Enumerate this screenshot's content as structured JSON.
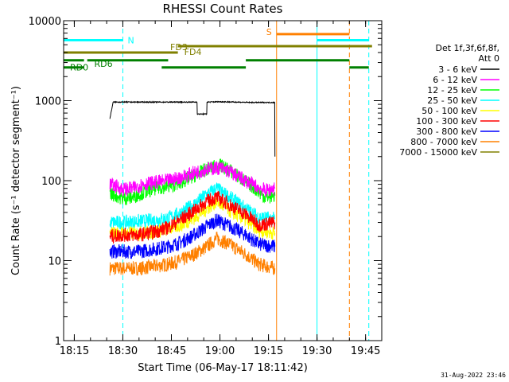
{
  "chart_data": {
    "type": "line",
    "title": "RHESSI Count Rates",
    "xlabel": "Start Time (06-May-17 18:11:42)",
    "ylabel": "Count Rate (s⁻¹ detector segment⁻¹)",
    "yscale": "log",
    "ylim": [
      1,
      10000
    ],
    "xlim": [
      "18:11:42",
      "19:50:00"
    ],
    "x_ticks": [
      "18:15",
      "18:30",
      "18:45",
      "19:00",
      "19:15",
      "19:30",
      "19:45"
    ],
    "y_ticks": [
      "1",
      "10",
      "100",
      "1000",
      "10000"
    ],
    "legend": {
      "placement": "right",
      "header": [
        "Det 1f,3f,6f,8f,",
        "Att 0"
      ]
    },
    "series": [
      {
        "name": "3 - 6 keV",
        "color": "#000000",
        "x": [
          "18:26",
          "18:27",
          "18:30",
          "18:35",
          "18:40",
          "18:44",
          "18:50",
          "18:53",
          "18:53",
          "18:56",
          "18:56",
          "19:00",
          "19:05",
          "19:10",
          "19:15",
          "19:17",
          "19:17"
        ],
        "y": [
          600,
          960,
          960,
          960,
          960,
          960,
          960,
          960,
          680,
          680,
          960,
          970,
          960,
          950,
          950,
          950,
          200
        ]
      },
      {
        "name": "6 - 12 keV",
        "color": "#ff00ff",
        "x": [
          "18:26",
          "18:28",
          "18:30",
          "18:33",
          "18:36",
          "18:40",
          "18:44",
          "18:48",
          "18:52",
          "18:56",
          "19:00",
          "19:03",
          "19:06",
          "19:10",
          "19:14",
          "19:17"
        ],
        "y": [
          90,
          85,
          78,
          80,
          90,
          95,
          100,
          110,
          125,
          140,
          145,
          130,
          110,
          90,
          75,
          80
        ]
      },
      {
        "name": "12 - 25 keV",
        "color": "#00ff00",
        "x": [
          "18:26",
          "18:28",
          "18:30",
          "18:33",
          "18:36",
          "18:40",
          "18:44",
          "18:48",
          "18:52",
          "18:56",
          "19:00",
          "19:03",
          "19:06",
          "19:10",
          "19:14",
          "19:17"
        ],
        "y": [
          70,
          65,
          60,
          62,
          70,
          80,
          85,
          95,
          115,
          140,
          155,
          135,
          110,
          85,
          62,
          65
        ]
      },
      {
        "name": "25 - 50 keV",
        "color": "#00ffff",
        "x": [
          "18:26",
          "18:30",
          "18:35",
          "18:40",
          "18:44",
          "18:48",
          "18:52",
          "18:56",
          "18:59",
          "19:03",
          "19:08",
          "19:12",
          "19:17"
        ],
        "y": [
          30,
          30,
          31,
          32,
          34,
          40,
          50,
          68,
          80,
          62,
          45,
          35,
          33
        ]
      },
      {
        "name": "50 - 100 keV",
        "color": "#ffff00",
        "x": [
          "18:26",
          "18:30",
          "18:35",
          "18:40",
          "18:44",
          "18:48",
          "18:52",
          "18:56",
          "18:59",
          "19:03",
          "19:08",
          "19:12",
          "19:17"
        ],
        "y": [
          22,
          22,
          22,
          23,
          25,
          28,
          34,
          45,
          55,
          42,
          32,
          24,
          22
        ]
      },
      {
        "name": "100 - 300 keV",
        "color": "#ff0000",
        "x": [
          "18:26",
          "18:30",
          "18:35",
          "18:40",
          "18:44",
          "18:48",
          "18:52",
          "18:56",
          "18:59",
          "19:03",
          "19:08",
          "19:12",
          "19:17"
        ],
        "y": [
          20,
          21,
          21,
          23,
          26,
          33,
          42,
          55,
          62,
          50,
          38,
          28,
          30
        ]
      },
      {
        "name": "300 - 800 keV",
        "color": "#0000ff",
        "x": [
          "18:26",
          "18:30",
          "18:35",
          "18:40",
          "18:44",
          "18:48",
          "18:52",
          "18:56",
          "18:59",
          "19:03",
          "19:08",
          "19:12",
          "19:17"
        ],
        "y": [
          13,
          13,
          13,
          14,
          15,
          17,
          21,
          27,
          32,
          27,
          21,
          16,
          15
        ]
      },
      {
        "name": "800 - 7000 keV",
        "color": "#ff8000",
        "x": [
          "18:26",
          "18:30",
          "18:35",
          "18:40",
          "18:44",
          "18:48",
          "18:52",
          "18:56",
          "18:59",
          "19:03",
          "19:08",
          "19:12",
          "19:17"
        ],
        "y": [
          8,
          8,
          8,
          8.5,
          9,
          10,
          12,
          15,
          19,
          16,
          12,
          9,
          8
        ]
      },
      {
        "name": "7000 - 15000 keV",
        "color": "#808000",
        "x": [],
        "y": []
      }
    ],
    "annotations": {
      "top_bars": [
        {
          "label": "N",
          "color": "#00ffff",
          "start": "18:11:42",
          "end": "18:30:00",
          "level": 5700
        },
        {
          "label": "",
          "color": "#00ffff",
          "start": "19:30:00",
          "end": "19:46:00",
          "level": 5700
        },
        {
          "label": "S",
          "color": "#ff8000",
          "start": "19:17:30",
          "end": "19:40:00",
          "level": 6800
        },
        {
          "label": "FD3",
          "color": "#808000",
          "start": "18:11:42",
          "end": "18:47:00",
          "level": 4000
        },
        {
          "label": "FD4",
          "color": "#808000",
          "start": "18:47:00",
          "end": "19:47:00",
          "level": 4800
        },
        {
          "label": "RD0",
          "color": "#008000",
          "start": "18:11:42",
          "end": "18:18:00",
          "level": 3200
        },
        {
          "label": "",
          "color": "#008000",
          "start": "18:19:00",
          "end": "18:44:00",
          "level": 3200
        },
        {
          "label": "",
          "color": "#008000",
          "start": "19:08:00",
          "end": "19:40:00",
          "level": 3200
        },
        {
          "label": "RD6",
          "color": "#008000",
          "start": "18:11:42",
          "end": "18:18:00",
          "level": 2600
        },
        {
          "label": "",
          "color": "#008000",
          "start": "18:42:00",
          "end": "19:08:00",
          "level": 2600
        },
        {
          "label": "",
          "color": "#008000",
          "start": "19:40:00",
          "end": "19:46:00",
          "level": 2600
        }
      ],
      "vlines": [
        {
          "time": "18:11:42",
          "color": "#00ffff",
          "style": "solid"
        },
        {
          "time": "18:30:00",
          "color": "#00ffff",
          "style": "dashed"
        },
        {
          "time": "19:17:30",
          "color": "#ff8000",
          "style": "solid"
        },
        {
          "time": "19:30:00",
          "color": "#00ffff",
          "style": "solid"
        },
        {
          "time": "19:40:00",
          "color": "#ff8000",
          "style": "dashed"
        },
        {
          "time": "19:46:00",
          "color": "#00ffff",
          "style": "dashed"
        }
      ]
    },
    "grid": false,
    "footer_stamp": "31-Aug-2022 23:46"
  }
}
